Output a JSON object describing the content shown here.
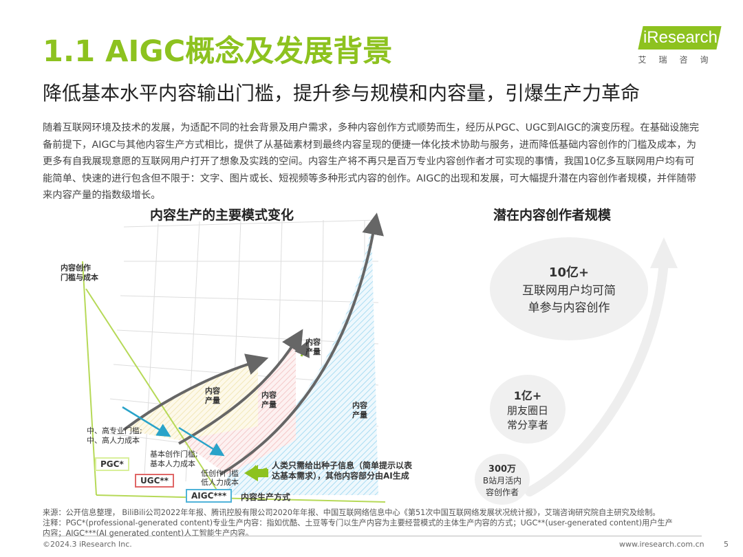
{
  "header": {
    "title": "1.1 AIGC概念及发展背景",
    "subtitle": "降低基本水平内容输出门槛，提升参与规模和内容量，引爆生产力革命",
    "logo_text": "iResearch",
    "logo_sub": "艾瑞咨询"
  },
  "intro": "随着互联网环境及技术的发展，为适配不同的社会背景及用户需求，多种内容创作方式顺势而生，经历从PGC、UGC到AIGC的演变历程。在基础设施完备前提下，AIGC与其他内容生产方式相比，提供了从基础素材到最终内容呈现的便捷一体化技术协助与服务，进而降低基础内容创作的门槛及成本，为更多有自我展现意愿的互联网用户打开了想象及实践的空间。内容生产将不再只是百万专业内容创作者才可实现的事情，我国10亿多互联网用户均有可能简单、快速的进行包含但不限于：文字、图片或长、短视频等多种形式内容的创作。AIGC的出现和发展，可大幅提升潜在内容创作者规模，并伴随带来内容产量的指数级增长。",
  "left_chart": {
    "heading": "内容生产的主要模式变化",
    "y_axis_label_1": "内容创作",
    "y_axis_label_2": "门槛与成本",
    "x_axis_label": "内容生产方式",
    "modes": {
      "pgc": "PGC*",
      "ugc": "UGC**",
      "aigc": "AIGC***"
    },
    "thresholds": {
      "pgc_1": "中、高专业门槛;",
      "pgc_2": "中、高人力成本",
      "ugc_1": "基本创作门槛;",
      "ugc_2": "基本人力成本",
      "aigc_1": "低创作门槛",
      "aigc_2": "低人力成本"
    },
    "output_1": "内容",
    "output_2": "产量",
    "aigc_desc_1": "人类只需给出种子信息（简单提示以表",
    "aigc_desc_2": "达基本需求），其他内容部分由AI生成"
  },
  "right_chart": {
    "heading": "潜在内容创作者规模",
    "tiers": [
      {
        "num": "10亿+",
        "line1": "互联网用户均可简",
        "line2": "单参与内容创作"
      },
      {
        "num": "1亿+",
        "line1": "朋友圈日",
        "line2": "常分享者"
      },
      {
        "num": "300万",
        "line1": "B站月活内",
        "line2": "容创作者"
      }
    ]
  },
  "note": {
    "line1": "来源：公开信息整理， BiliBili公司2022年年报、腾讯控股有限公司2020年年报、中国互联网络信息中心《第51次中国互联网络发展状况统计报》，艾瑞咨询研究院自主研究及绘制。",
    "line2": "注释：PGC*(professional-generated content)专业生产内容：指如优酷、土豆等专门以生产内容为主要经营模式的主体生产内容的方式；UGC**(user-generated content)用户生产",
    "line3": "内容；AIGC***(AI generated content)人工智能生产内容。"
  },
  "footer": {
    "left": "©2024.3 iResearch Inc.",
    "right": "www.iresearch.com.cn",
    "page": "5"
  },
  "colors": {
    "accent": "#8dc21f",
    "pgc_box": "#d9ef9a",
    "ugc_box": "#e06666",
    "aigc_box": "#4fb3d9",
    "arrow_gray": "#666666",
    "cyan_arrow": "#29a3c9"
  }
}
